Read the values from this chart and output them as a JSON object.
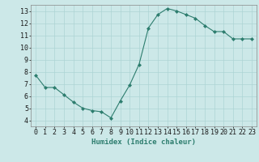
{
  "x": [
    0,
    1,
    2,
    3,
    4,
    5,
    6,
    7,
    8,
    9,
    10,
    11,
    12,
    13,
    14,
    15,
    16,
    17,
    18,
    19,
    20,
    21,
    22,
    23
  ],
  "y": [
    7.7,
    6.7,
    6.7,
    6.1,
    5.5,
    5.0,
    4.8,
    4.7,
    4.2,
    5.6,
    6.9,
    8.6,
    11.6,
    12.7,
    13.2,
    13.0,
    12.7,
    12.4,
    11.8,
    11.3,
    11.3,
    10.7,
    10.7,
    10.7
  ],
  "line_color": "#2d7d6e",
  "marker": "D",
  "marker_size": 2.0,
  "bg_color": "#cce8e8",
  "grid_color": "#add4d4",
  "xlabel": "Humidex (Indice chaleur)",
  "xlim": [
    -0.5,
    23.5
  ],
  "ylim": [
    3.5,
    13.5
  ],
  "yticks": [
    4,
    5,
    6,
    7,
    8,
    9,
    10,
    11,
    12,
    13
  ],
  "xticks": [
    0,
    1,
    2,
    3,
    4,
    5,
    6,
    7,
    8,
    9,
    10,
    11,
    12,
    13,
    14,
    15,
    16,
    17,
    18,
    19,
    20,
    21,
    22,
    23
  ],
  "label_fontsize": 6.5,
  "tick_fontsize": 6.0,
  "line_width": 0.8
}
